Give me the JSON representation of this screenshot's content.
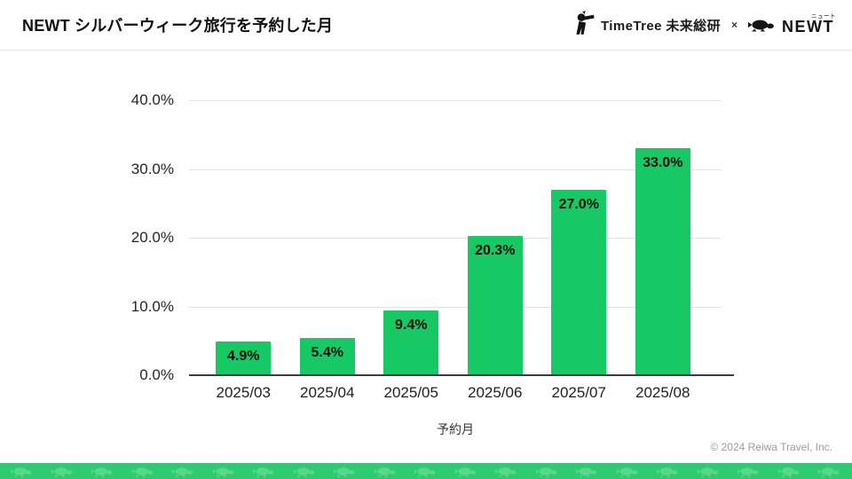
{
  "header": {
    "title": "NEWT シルバーウィーク旅行を予約した月",
    "timetree_logo_text": "TimeTree 未来総研",
    "logo_separator": "×",
    "newt_logo_text": "NEWT",
    "newt_logo_ruby": "ニュート",
    "timetree_icon": "timetree-mascot-icon",
    "newt_icon": "turtle-icon"
  },
  "chart_data": {
    "type": "bar",
    "title": "NEWT シルバーウィーク旅行を予約した月",
    "categories": [
      "2025/03",
      "2025/04",
      "2025/05",
      "2025/06",
      "2025/07",
      "2025/08"
    ],
    "values": [
      4.9,
      5.4,
      9.4,
      20.3,
      27.0,
      33.0
    ],
    "data_labels": [
      "4.9%",
      "5.4%",
      "9.4%",
      "20.3%",
      "27.0%",
      "33.0%"
    ],
    "xlabel": "予約月",
    "ylabel": "",
    "ylim": [
      0,
      40
    ],
    "ytick_labels_top_to_bottom": [
      "40.0%",
      "30.0%",
      "20.0%",
      "10.0%",
      "0.0%"
    ],
    "grid": true,
    "legend": false,
    "bar_color": "#17c964",
    "data_label_color": "#0c0c0c"
  },
  "footer": {
    "copyright": "© 2024 Reiwa Travel, Inc."
  },
  "colors": {
    "accent_green": "#17c964",
    "strip_background": "#2fcb70",
    "strip_turtle": "#58d78d",
    "logo_black": "#141414"
  }
}
